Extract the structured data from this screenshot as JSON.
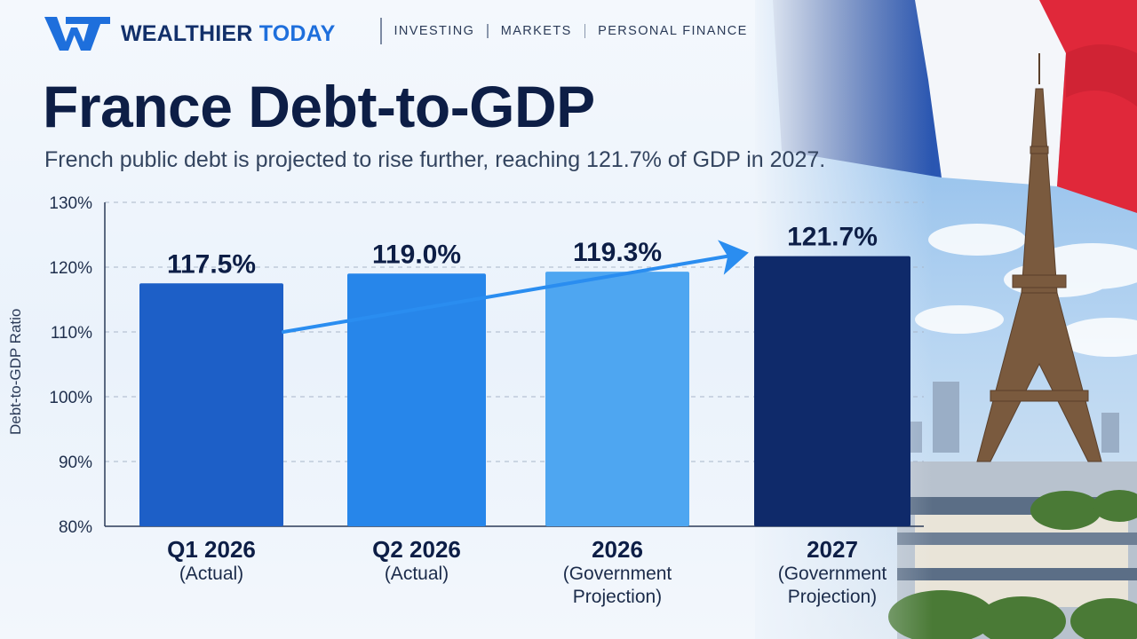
{
  "brand": {
    "name_part1": "WEALTHIER",
    "name_part2": "TODAY"
  },
  "nav": [
    "INVESTING",
    "MARKETS",
    "PERSONAL FINANCE"
  ],
  "header": {
    "title": "France Debt-to-GDP",
    "subtitle": "French public debt is projected to rise further, reaching 121.7% of GDP in 2027."
  },
  "colors": {
    "navy": "#0d1e46",
    "accent": "#1e6fdc",
    "bar1": "#1d5fc7",
    "bar2": "#2786ea",
    "bar3": "#4ea6f1",
    "bar4": "#0f2a6a"
  },
  "chart_data": {
    "type": "bar",
    "categories": [
      "Q1 2026",
      "Q2 2026",
      "2026",
      "2027"
    ],
    "category_notes": [
      "(Actual)",
      "(Actual)",
      "(Government\nProjection)",
      "(Government\nProjection)"
    ],
    "values": [
      117.5,
      119.0,
      119.3,
      121.7
    ],
    "value_labels": [
      "117.5%",
      "119.0%",
      "119.3%",
      "121.7%"
    ],
    "ylabel": "Debt-to-GDP Ratio",
    "ylim": [
      80,
      130
    ],
    "yticks": [
      80,
      90,
      100,
      110,
      120,
      130
    ],
    "ytick_labels": [
      "80%",
      "90%",
      "100%",
      "110%",
      "120%",
      "130%"
    ],
    "grid": true,
    "trend_arrow": true
  }
}
